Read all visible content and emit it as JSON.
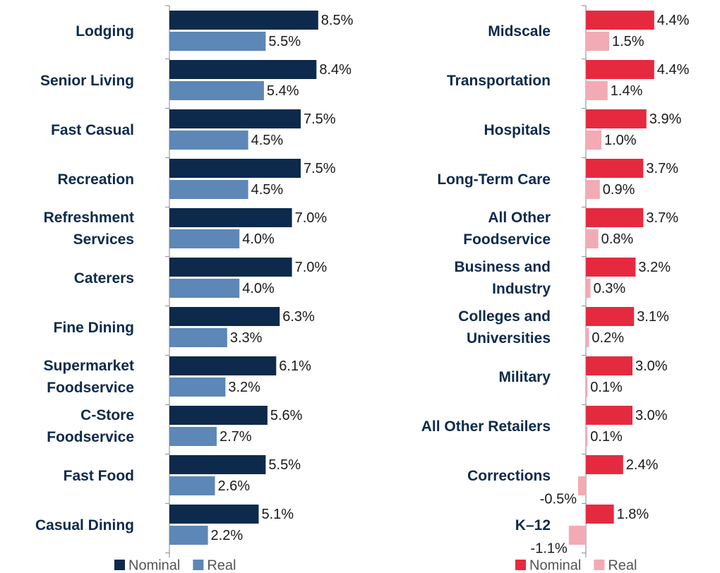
{
  "chart_data": [
    {
      "type": "bar",
      "orientation": "horizontal",
      "categories": [
        "Lodging",
        "Senior Living",
        "Fast Casual",
        "Recreation",
        "Refreshment Services",
        "Caterers",
        "Fine Dining",
        "Supermarket Foodservice",
        "C-Store Foodservice",
        "Fast Food",
        "Casual Dining"
      ],
      "series": [
        {
          "name": "Nominal",
          "color": "#0d2a4c",
          "values": [
            8.5,
            8.4,
            7.5,
            7.5,
            7.0,
            7.0,
            6.3,
            6.1,
            5.6,
            5.5,
            5.1
          ],
          "value_labels": [
            "8.5%",
            "8.4%",
            "7.5%",
            "7.5%",
            "7.0%",
            "7.0%",
            "6.3%",
            "6.1%",
            "5.6%",
            "5.5%",
            "5.1%"
          ]
        },
        {
          "name": "Real",
          "color": "#5d87b6",
          "values": [
            5.5,
            5.4,
            4.5,
            4.5,
            4.0,
            4.0,
            3.3,
            3.2,
            2.7,
            2.6,
            2.2
          ],
          "value_labels": [
            "5.5%",
            "5.4%",
            "4.5%",
            "4.5%",
            "4.0%",
            "4.0%",
            "3.3%",
            "3.2%",
            "2.7%",
            "2.6%",
            "2.2%"
          ]
        }
      ],
      "xlim": [
        0,
        10
      ]
    },
    {
      "type": "bar",
      "orientation": "horizontal",
      "categories": [
        "Midscale",
        "Transportation",
        "Hospitals",
        "Long-Term Care",
        "All Other Foodservice",
        "Business and Industry",
        "Colleges and Universities",
        "Military",
        "All Other Retailers",
        "Corrections",
        "K–12"
      ],
      "series": [
        {
          "name": "Nominal",
          "color": "#e52a40",
          "values": [
            4.4,
            4.4,
            3.9,
            3.7,
            3.7,
            3.2,
            3.1,
            3.0,
            3.0,
            2.4,
            1.8
          ],
          "value_labels": [
            "4.4%",
            "4.4%",
            "3.9%",
            "3.7%",
            "3.7%",
            "3.2%",
            "3.1%",
            "3.0%",
            "3.0%",
            "2.4%",
            "1.8%"
          ]
        },
        {
          "name": "Real",
          "color": "#f2abb4",
          "values": [
            1.5,
            1.4,
            1.0,
            0.9,
            0.8,
            0.3,
            0.2,
            0.1,
            0.1,
            -0.5,
            -1.1
          ],
          "value_labels": [
            "1.5%",
            "1.4%",
            "1.0%",
            "0.9%",
            "0.8%",
            "0.3%",
            "0.2%",
            "0.1%",
            "0.1%",
            "-0.5%",
            "-1.1%"
          ]
        }
      ],
      "xlim": [
        -4,
        6
      ]
    }
  ]
}
